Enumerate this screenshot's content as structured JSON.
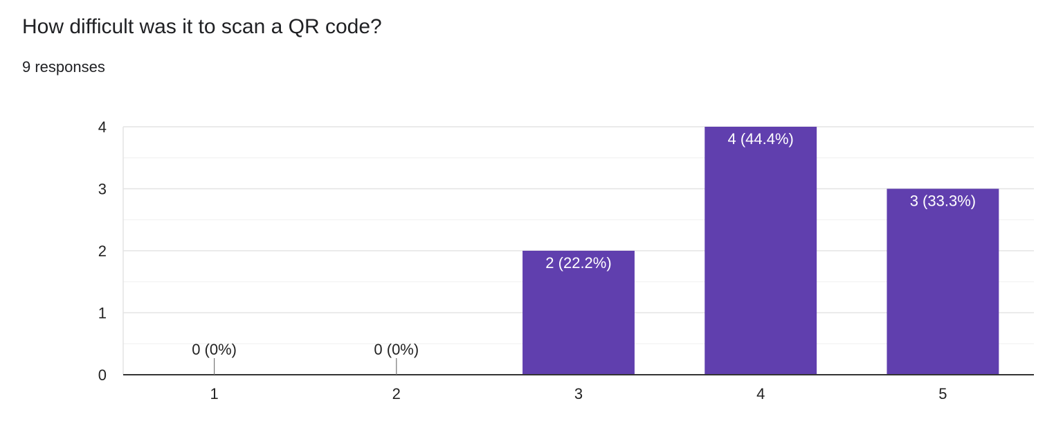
{
  "header": {
    "title": "How difficult was it to scan a QR code?",
    "responses": "9 responses"
  },
  "colors": {
    "bar": "#603fae",
    "grid_major": "#e4e4e4",
    "grid_minor": "#f2f2f2",
    "axis": "#333333",
    "text": "#222222"
  },
  "chart_data": {
    "type": "bar",
    "categories": [
      "1",
      "2",
      "3",
      "4",
      "5"
    ],
    "values": [
      0,
      0,
      2,
      4,
      3
    ],
    "data_labels": [
      "0 (0%)",
      "0 (0%)",
      "2 (22.2%)",
      "4 (44.4%)",
      "3 (33.3%)"
    ],
    "y_ticks": [
      0,
      1,
      2,
      3,
      4
    ],
    "ylim": [
      0,
      4
    ],
    "grid": true,
    "legend": "none"
  }
}
